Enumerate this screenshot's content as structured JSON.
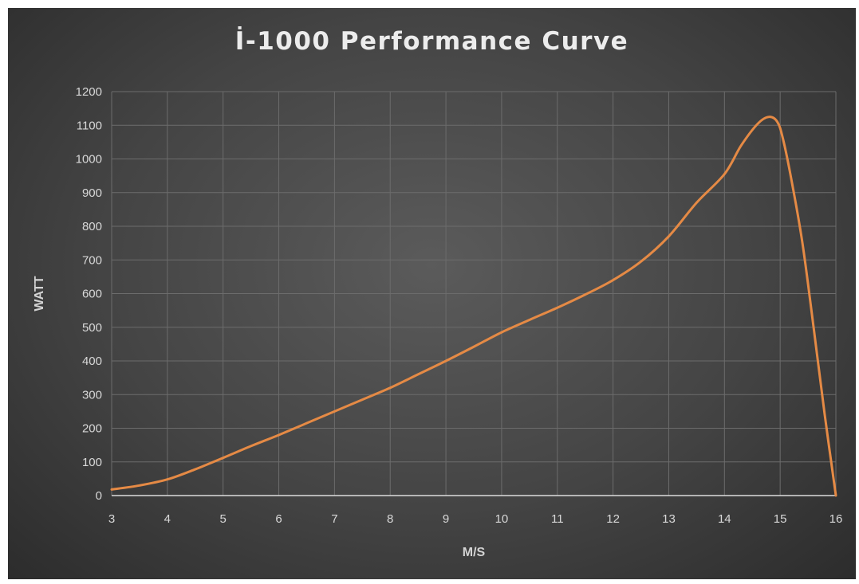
{
  "chart_data": {
    "type": "line",
    "title": "İ-1000 Performance Curve",
    "xlabel": "M/S",
    "ylabel": "WATT",
    "xlim": [
      3,
      16
    ],
    "ylim": [
      0,
      1200
    ],
    "xticks": [
      3,
      4,
      5,
      6,
      7,
      8,
      9,
      10,
      11,
      12,
      13,
      14,
      15,
      16
    ],
    "yticks": [
      0,
      100,
      200,
      300,
      400,
      500,
      600,
      700,
      800,
      900,
      1000,
      1100,
      1200
    ],
    "grid": true,
    "legend": "none",
    "series": [
      {
        "color": "#e58a45",
        "x": [
          3,
          3.5,
          4,
          4.5,
          5,
          5.5,
          6,
          6.5,
          7,
          7.5,
          8,
          8.5,
          9,
          9.5,
          10,
          10.5,
          11,
          11.5,
          12,
          12.5,
          13,
          13.5,
          14,
          14.3,
          14.6,
          14.8,
          14.95,
          15.05,
          15.2,
          15.4,
          15.6,
          15.8,
          16
        ],
        "y": [
          18,
          30,
          48,
          78,
          112,
          147,
          180,
          215,
          250,
          285,
          320,
          360,
          400,
          442,
          485,
          522,
          558,
          597,
          640,
          695,
          770,
          870,
          955,
          1040,
          1105,
          1125,
          1110,
          1060,
          940,
          750,
          500,
          240,
          0
        ]
      }
    ]
  }
}
